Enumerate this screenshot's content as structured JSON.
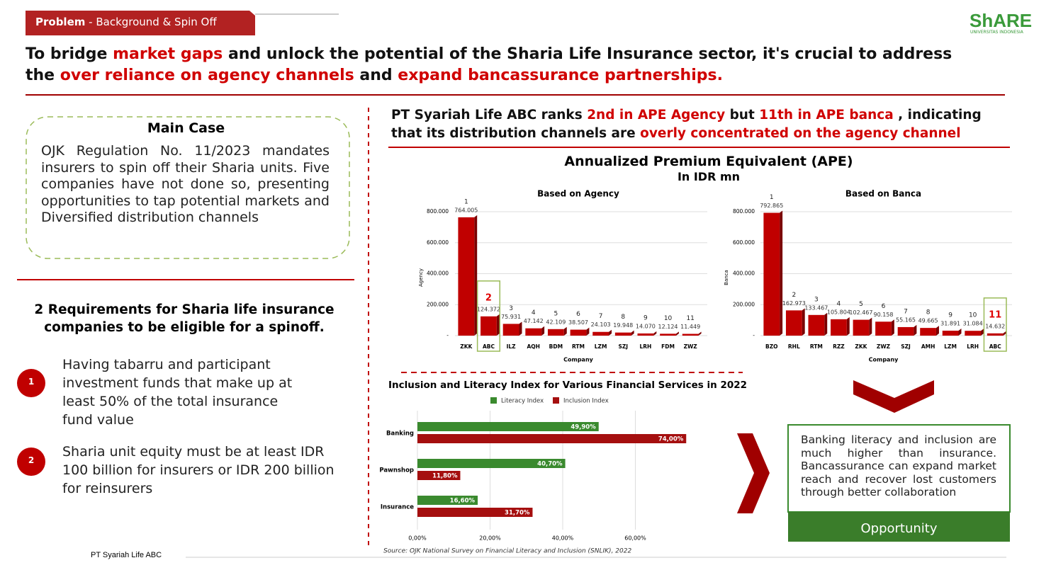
{
  "header": {
    "tag": "Problem",
    "tag_rest": " - Background & Spin Off",
    "logo": "ShARE",
    "logo_sub": "UNIVERSITAS INDONESIA"
  },
  "headline": [
    {
      "text": "To bridge ",
      "highlight": false
    },
    {
      "text": "market gaps",
      "highlight": true
    },
    {
      "text": " and unlock the potential of the Sharia Life Insurance sector, it's crucial to address the ",
      "highlight": false
    },
    {
      "text": "over reliance on agency channels",
      "highlight": true
    },
    {
      "text": " and ",
      "highlight": false
    },
    {
      "text": "expand bancassurance partnerships.",
      "highlight": true
    }
  ],
  "main_case": {
    "title": "Main Case",
    "text": "OJK Regulation No. 11/2023 mandates insurers to spin off their Sharia units. Five companies have not done so, presenting opportunities to tap potential markets and Diversified distribution channels"
  },
  "requirements": {
    "title": "2 Requirements for Sharia life insurance companies to be eligible for a spinoff.",
    "items": [
      {
        "number": 1,
        "text": "Having tabarru and participant investment funds that make up at least 50% of the total insurance fund value"
      },
      {
        "number": 2,
        "text": "Sharia unit equity must be at least IDR 100 billion for insurers or IDR 200 billion for reinsurers"
      }
    ]
  },
  "right_heading": [
    {
      "text": "PT Syariah Life ABC ranks ",
      "highlight": false
    },
    {
      "text": "2nd in APE Agency",
      "highlight": true
    },
    {
      "text": " but ",
      "highlight": false
    },
    {
      "text": "11th in APE banca",
      "highlight": true
    },
    {
      "text": " , indicating that its distribution channels are ",
      "highlight": false
    },
    {
      "text": "overly concentrated on the agency channel",
      "highlight": true
    }
  ],
  "ape": {
    "title": "Annualized Premium Equivalent (APE)",
    "subtitle": "In IDR mn"
  },
  "chart_data": [
    {
      "type": "bar",
      "title": "Based on Agency",
      "y_label": "Agency",
      "x_label": "Company",
      "color": "#c00000",
      "highlight_index": 1,
      "categories": [
        "ZKK",
        "ABC",
        "ILZ",
        "AQH",
        "BDM",
        "RTM",
        "LZM",
        "SZJ",
        "LRH",
        "FDM",
        "ZWZ"
      ],
      "values": [
        764005,
        124372,
        75931,
        47142,
        42109,
        38507,
        24103,
        19948,
        14070,
        12124,
        11449
      ],
      "value_labels": [
        "764.005",
        "124.372",
        "75.931",
        "47.142",
        "42.109",
        "38.507",
        "24.103",
        "19.948",
        "14.070",
        "12.124",
        "11.449"
      ],
      "ranks": [
        1,
        2,
        3,
        4,
        5,
        6,
        7,
        8,
        9,
        10,
        11
      ],
      "ylim": [
        0,
        820000
      ],
      "yticks": [
        {
          "value": 0,
          "label": "-"
        },
        {
          "value": 200000,
          "label": "200.000"
        },
        {
          "value": 400000,
          "label": "400.000"
        },
        {
          "value": 600000,
          "label": "600.000"
        },
        {
          "value": 800000,
          "label": "800.000"
        }
      ],
      "grid": true
    },
    {
      "type": "bar",
      "title": "Based on Banca",
      "y_label": "Banca",
      "x_label": "Company",
      "color": "#c00000",
      "highlight_index": 10,
      "categories": [
        "BZO",
        "RHL",
        "RTM",
        "RZZ",
        "ZKK",
        "ZWZ",
        "SZJ",
        "AMH",
        "LZM",
        "LRH",
        "ABC"
      ],
      "values": [
        792865,
        162973,
        133467,
        105804,
        102467,
        90158,
        55165,
        49665,
        31891,
        31084,
        14632
      ],
      "value_labels": [
        "792.865",
        "162.973",
        "133.467",
        "105.804",
        "102.467",
        "90.158",
        "55.165",
        "49.665",
        "31.891",
        "31.084",
        "14.632"
      ],
      "ranks": [
        1,
        2,
        3,
        4,
        5,
        6,
        7,
        8,
        9,
        10,
        11
      ],
      "ylim": [
        0,
        820000
      ],
      "yticks": [
        {
          "value": 0,
          "label": "-"
        },
        {
          "value": 200000,
          "label": "200.000"
        },
        {
          "value": 400000,
          "label": "400.000"
        },
        {
          "value": 600000,
          "label": "600.000"
        },
        {
          "value": 800000,
          "label": "800.000"
        }
      ],
      "grid": true
    },
    {
      "type": "hbar",
      "title": "Inclusion and Literacy Index for Various Financial Services in 2022",
      "source": "Source: OJK National Survey on Financial Literacy and Inclusion (SNLIK), 2022",
      "categories": [
        "Banking",
        "Pawnshop",
        "Insurance"
      ],
      "series": [
        {
          "name": "Literacy Index",
          "color": "#3a8a2e",
          "values": [
            49.9,
            40.7,
            16.6
          ],
          "value_labels": [
            "49,90%",
            "40,70%",
            "16,60%"
          ]
        },
        {
          "name": "Inclusion Index",
          "color": "#a50f0f",
          "values": [
            74,
            11.8,
            31.7
          ],
          "value_labels": [
            "74,00%",
            "11,80%",
            "31,70%"
          ]
        }
      ],
      "xlim": [
        0,
        80
      ],
      "xticks": [
        {
          "value": 0,
          "label": "0,00%"
        },
        {
          "value": 20,
          "label": "20,00%"
        },
        {
          "value": 40,
          "label": "40,00%"
        },
        {
          "value": 60,
          "label": "60,00%"
        }
      ],
      "grid": true
    }
  ],
  "conclusion": {
    "text": "Banking literacy and inclusion are much higher than insurance. Bancassurance can expand market reach and recover lost customers through better collaboration",
    "button": "Opportunity"
  },
  "footer": "PT Syariah Life ABC"
}
